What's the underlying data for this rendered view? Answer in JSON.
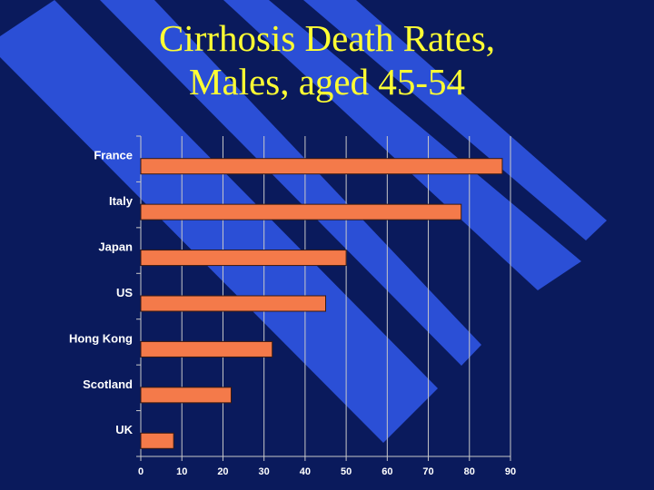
{
  "slide": {
    "title_line1": "Cirrhosis Death Rates,",
    "title_line2": "Males, aged 45-54"
  },
  "colors": {
    "background": "#0a1a5c",
    "stripe": "#2b4fd6",
    "title": "#ffff33",
    "bar_fill": "#f47a4a",
    "bar_stroke": "#3a1a10",
    "gridline": "#c8c8c8",
    "text": "#ffffff"
  },
  "chart_data": {
    "type": "bar",
    "orientation": "horizontal",
    "title": "Cirrhosis Death Rates, Males, aged 45-54",
    "categories": [
      "France",
      "Italy",
      "Japan",
      "US",
      "Hong Kong",
      "Scotland",
      "UK"
    ],
    "values": [
      88,
      78,
      50,
      45,
      32,
      22,
      8
    ],
    "xlim": [
      0,
      90
    ],
    "xticks": [
      0,
      10,
      20,
      30,
      40,
      50,
      60,
      70,
      80,
      90
    ],
    "grid": "vertical",
    "legend": "none",
    "xlabel": "",
    "ylabel": ""
  }
}
